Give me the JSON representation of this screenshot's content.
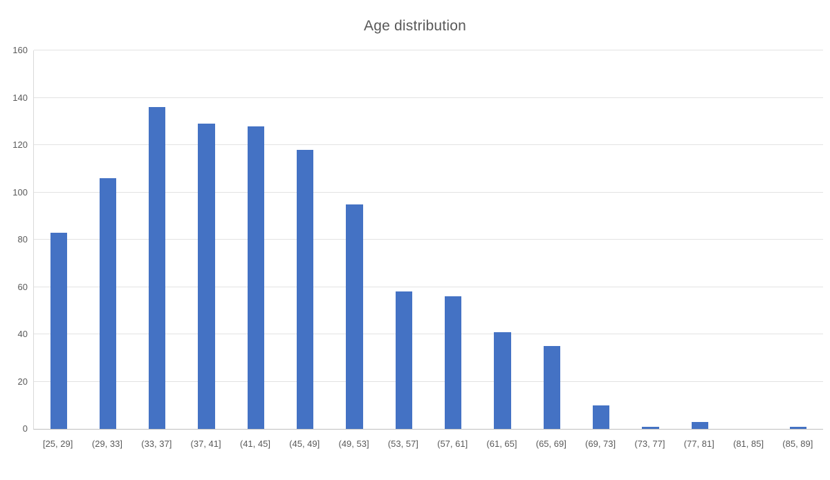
{
  "title": "Age distribution",
  "colors": {
    "bar": "#4472c4",
    "gridline": "#e2e2e2",
    "axis_line": "#bfbfbf",
    "plot_border": "#d9d9d9",
    "text": "#595959"
  },
  "chart_data": {
    "type": "bar",
    "title": "Age distribution",
    "categories": [
      "[25, 29]",
      "(29, 33]",
      "(33, 37]",
      "(37, 41]",
      "(41, 45]",
      "(45, 49]",
      "(49, 53]",
      "(53, 57]",
      "(57, 61]",
      "(61, 65]",
      "(65, 69]",
      "(69, 73]",
      "(73, 77]",
      "(77, 81]",
      "(81, 85]",
      "(85, 89]"
    ],
    "values": [
      83,
      106,
      136,
      129,
      128,
      118,
      95,
      58,
      56,
      41,
      35,
      10,
      1,
      3,
      0,
      1
    ],
    "xlabel": "",
    "ylabel": "",
    "ylim": [
      0,
      160
    ],
    "yticks": [
      0,
      20,
      40,
      60,
      80,
      100,
      120,
      140,
      160
    ],
    "grid": true,
    "legend_position": "none"
  }
}
